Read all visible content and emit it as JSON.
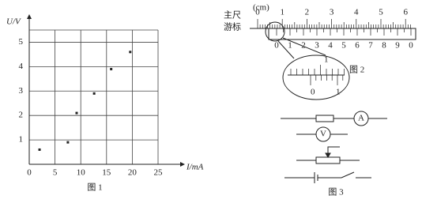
{
  "chart_data": {
    "type": "scatter",
    "caption": "图 1",
    "xlabel": "I/mA",
    "ylabel": "U/V",
    "x": [
      2,
      7.5,
      9.2,
      12.6,
      15.9,
      19.6
    ],
    "values": [
      0.6,
      0.9,
      2.1,
      2.9,
      3.9,
      4.6
    ],
    "xlim": [
      0,
      25
    ],
    "ylim": [
      0,
      5.5
    ],
    "xticks": [
      0,
      5,
      10,
      15,
      20,
      25
    ],
    "yticks": [
      1,
      2,
      3,
      4,
      5
    ],
    "grid": true,
    "color": "#222"
  },
  "figure2": {
    "unit": "(cm)",
    "main_scale_label": "主尺",
    "vernier_label": "游标",
    "main_scale_numbers": [
      "0",
      "1",
      "2",
      "3",
      "4",
      "5",
      "6"
    ],
    "vernier_numbers": [
      "0",
      "1",
      "2",
      "3",
      "4",
      "5",
      "6",
      "7",
      "8",
      "9",
      "0"
    ],
    "zoom_main_number": "1",
    "zoom_vernier_numbers": [
      "0",
      "1"
    ],
    "caption": "图 2"
  },
  "figure3": {
    "ammeter": "A",
    "voltmeter": "V",
    "caption": "图 3"
  }
}
